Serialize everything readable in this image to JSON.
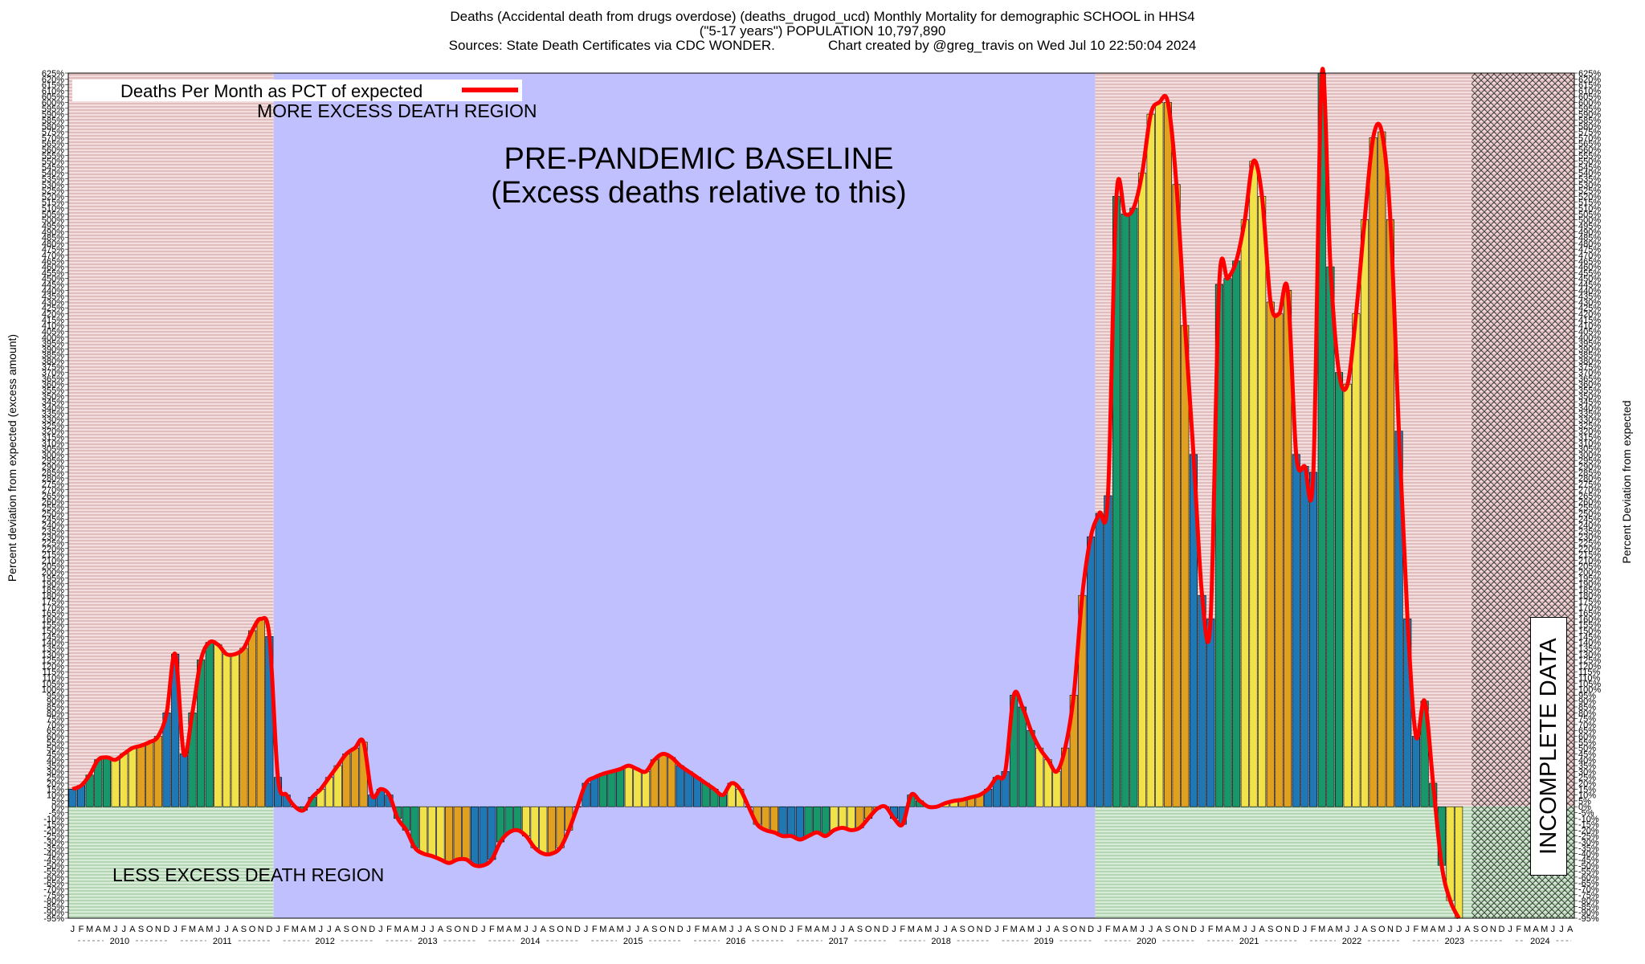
{
  "title": {
    "line1": "Deaths (Accidental death from drugs overdose) (deaths_drugod_ucd) Monthly Mortality for demographic SCHOOL in HHS4",
    "line2": "(\"5-17 years\") POPULATION 10,797,890",
    "line3": "Sources: State Death Certificates via CDC WONDER.              Chart created by @greg_travis on Wed Jul 10 22:50:04 2024"
  },
  "colors": {
    "more_region": "#e8c8c8",
    "less_region": "#c4dcc4",
    "baseline_region": "#c0c0ff",
    "line": "#ff0000",
    "bar_winter": "#1f77b4",
    "bar_spring": "#17976a",
    "bar_summer": "#f2e24a",
    "bar_fall": "#e0a020"
  },
  "chart_data": {
    "type": "bar",
    "ylabel": "Percent deviation from expected (excess amount)",
    "ylabel_right": "Percent Deviation from expected",
    "legend": "Deaths Per Month as PCT of expected",
    "legend_position": "top-left",
    "ylim": [
      -95,
      625
    ],
    "ytick_step": 5,
    "annotations": {
      "more": "MORE EXCESS DEATH REGION",
      "less": "LESS EXCESS DEATH REGION",
      "baseline_line1": "PRE-PANDEMIC BASELINE",
      "baseline_line2": "(Excess deaths relative to this)",
      "incomplete": "INCOMPLETE DATA"
    },
    "month_letters": [
      "J",
      "F",
      "M",
      "A",
      "M",
      "J",
      "J",
      "A",
      "S",
      "O",
      "N",
      "D"
    ],
    "years": [
      "2010",
      "2011",
      "2012",
      "2013",
      "2014",
      "2015",
      "2016",
      "2017",
      "2018",
      "2019",
      "2020",
      "2021",
      "2022",
      "2023",
      "2024"
    ],
    "start": "2010-01",
    "baseline_period": [
      "2012-01",
      "2019-12"
    ],
    "incomplete_from": "2023-09",
    "values": [
      15,
      18,
      27,
      40,
      42,
      40,
      45,
      50,
      52,
      55,
      60,
      80,
      130,
      45,
      80,
      125,
      140,
      138,
      130,
      130,
      135,
      150,
      160,
      145,
      25,
      10,
      0,
      -3,
      8,
      15,
      25,
      35,
      45,
      50,
      55,
      10,
      15,
      10,
      -10,
      -20,
      -35,
      -40,
      -42,
      -45,
      -48,
      -45,
      -45,
      -50,
      -50,
      -45,
      -30,
      -22,
      -20,
      -25,
      -35,
      -40,
      -40,
      -35,
      -20,
      0,
      20,
      25,
      28,
      30,
      32,
      35,
      32,
      30,
      40,
      45,
      42,
      35,
      30,
      25,
      20,
      15,
      10,
      20,
      15,
      0,
      -15,
      -20,
      -22,
      -25,
      -25,
      -28,
      -25,
      -22,
      -25,
      -20,
      -18,
      -20,
      -18,
      -10,
      -2,
      0,
      -10,
      -15,
      10,
      5,
      0,
      0,
      3,
      5,
      6,
      8,
      10,
      15,
      25,
      30,
      95,
      85,
      65,
      50,
      40,
      30,
      50,
      95,
      180,
      230,
      250,
      265,
      520,
      505,
      510,
      540,
      590,
      600,
      600,
      530,
      410,
      300,
      180,
      160,
      445,
      450,
      465,
      500,
      550,
      520,
      430,
      420,
      440,
      300,
      290,
      285,
      625,
      460,
      370,
      360,
      420,
      500,
      570,
      575,
      500,
      320,
      160,
      60,
      90,
      20,
      -50,
      -80,
      -95
    ]
  }
}
